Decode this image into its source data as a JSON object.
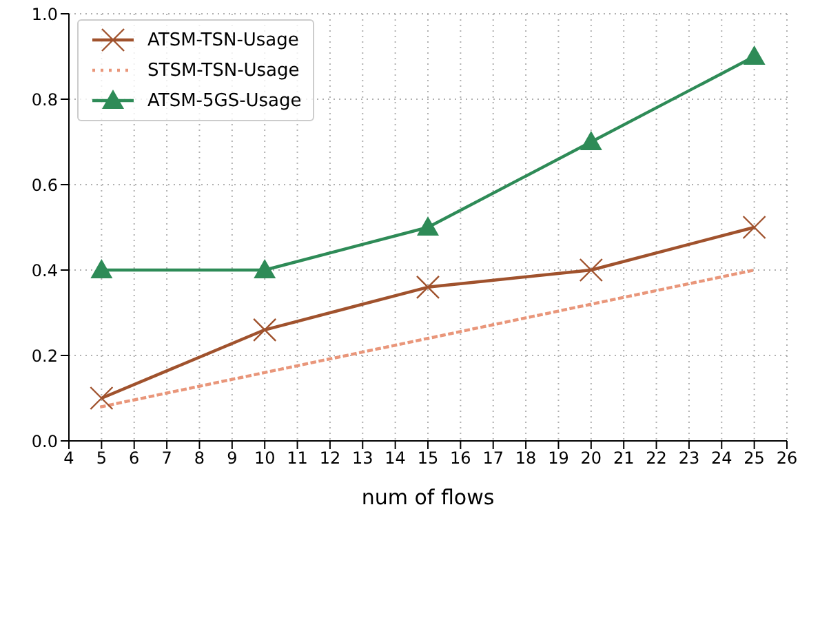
{
  "chart_data": {
    "type": "line",
    "xlabel": "num of flows",
    "x": [
      5,
      10,
      15,
      20,
      25
    ],
    "series": [
      {
        "name": "ATSM-TSN-Usage",
        "color": "#a0522d",
        "values": [
          0.1,
          0.26,
          0.36,
          0.4,
          0.5
        ],
        "marker": "cross",
        "line_style": "solid"
      },
      {
        "name": "STSM-TSN-Usage",
        "color": "#e9967a",
        "values": [
          0.08,
          0.16,
          0.24,
          0.32,
          0.4
        ],
        "marker": "none",
        "line_style": "dotted"
      },
      {
        "name": "ATSM-5GS-Usage",
        "color": "#2e8b57",
        "values": [
          0.4,
          0.4,
          0.5,
          0.7,
          0.9
        ],
        "marker": "triangle",
        "line_style": "solid"
      }
    ],
    "xlim": [
      4,
      26
    ],
    "xticks": [
      4,
      5,
      6,
      7,
      8,
      9,
      10,
      11,
      12,
      13,
      14,
      15,
      16,
      17,
      18,
      19,
      20,
      21,
      22,
      23,
      24,
      25,
      26
    ],
    "ylim": [
      0,
      1
    ],
    "yticks": [
      {
        "value": 0,
        "label": "0.0"
      },
      0.2,
      0.4,
      0.6,
      0.8,
      {
        "value": 1,
        "label": "1.0"
      }
    ],
    "grid": true,
    "legend": "top left"
  }
}
